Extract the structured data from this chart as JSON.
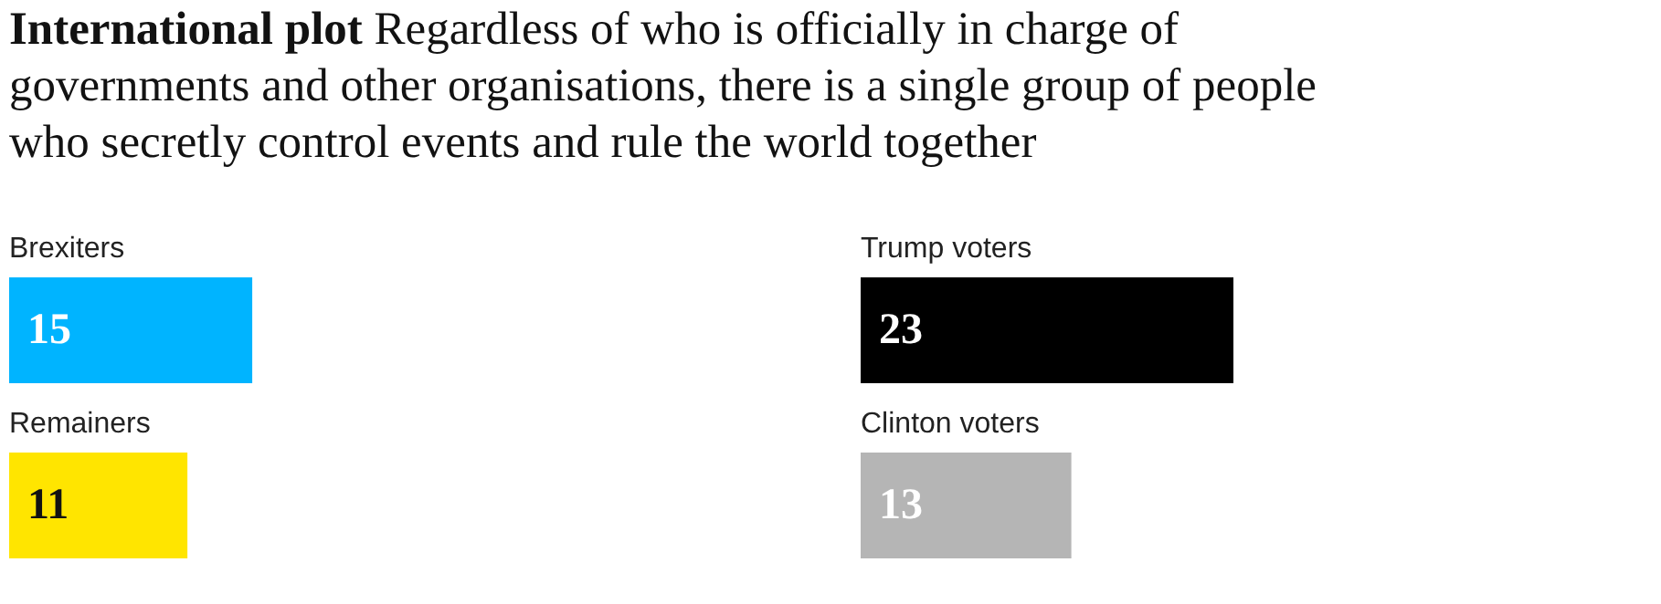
{
  "chart_data": [
    {
      "type": "bar",
      "orientation": "horizontal",
      "title": "International plot",
      "subtitle": "Regardless of who is officially in charge of governments and other organisations, there is a single group of people who secretly control events and rule the world together",
      "categories": [
        "Brexiters",
        "Remainers"
      ],
      "values": [
        15,
        11
      ],
      "colors": [
        "#00b4ff",
        "#ffe500"
      ],
      "data_labels": true
    },
    {
      "type": "bar",
      "orientation": "horizontal",
      "categories": [
        "Trump voters",
        "Clinton voters"
      ],
      "values": [
        23,
        13
      ],
      "colors": [
        "#000000",
        "#b5b5b5"
      ],
      "data_labels": true
    }
  ]
}
